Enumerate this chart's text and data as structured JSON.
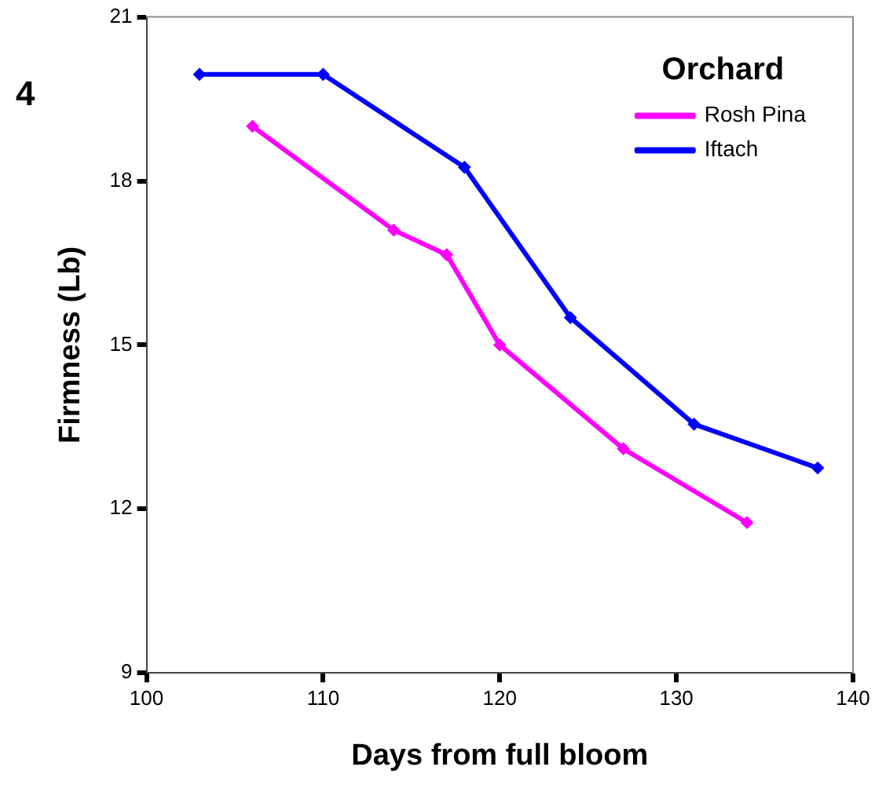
{
  "chart_data": {
    "type": "line",
    "xlabel": "Days from full bloom",
    "ylabel": "Firmness (Lb)",
    "legend_title": "Orchard",
    "annotations": [
      "4"
    ],
    "xlim": [
      100,
      140
    ],
    "xticks": [
      100,
      110,
      120,
      130,
      140
    ],
    "ylim": [
      9,
      21
    ],
    "yticks": [
      9,
      12,
      15,
      18,
      21
    ],
    "grid": false,
    "legend": "top right",
    "marker": "diamond",
    "line_style": "solid",
    "series": [
      {
        "name": "Rosh Pina",
        "color": "#ff00ff",
        "x": [
          106,
          114,
          117,
          120,
          127,
          134
        ],
        "values": [
          19.0,
          17.1,
          16.65,
          15.0,
          13.1,
          11.75
        ]
      },
      {
        "name": "Iftach",
        "color": "#0000ff",
        "x": [
          103,
          110,
          118,
          124,
          131,
          138
        ],
        "values": [
          19.95,
          19.95,
          18.25,
          15.5,
          13.55,
          12.75
        ]
      }
    ]
  }
}
